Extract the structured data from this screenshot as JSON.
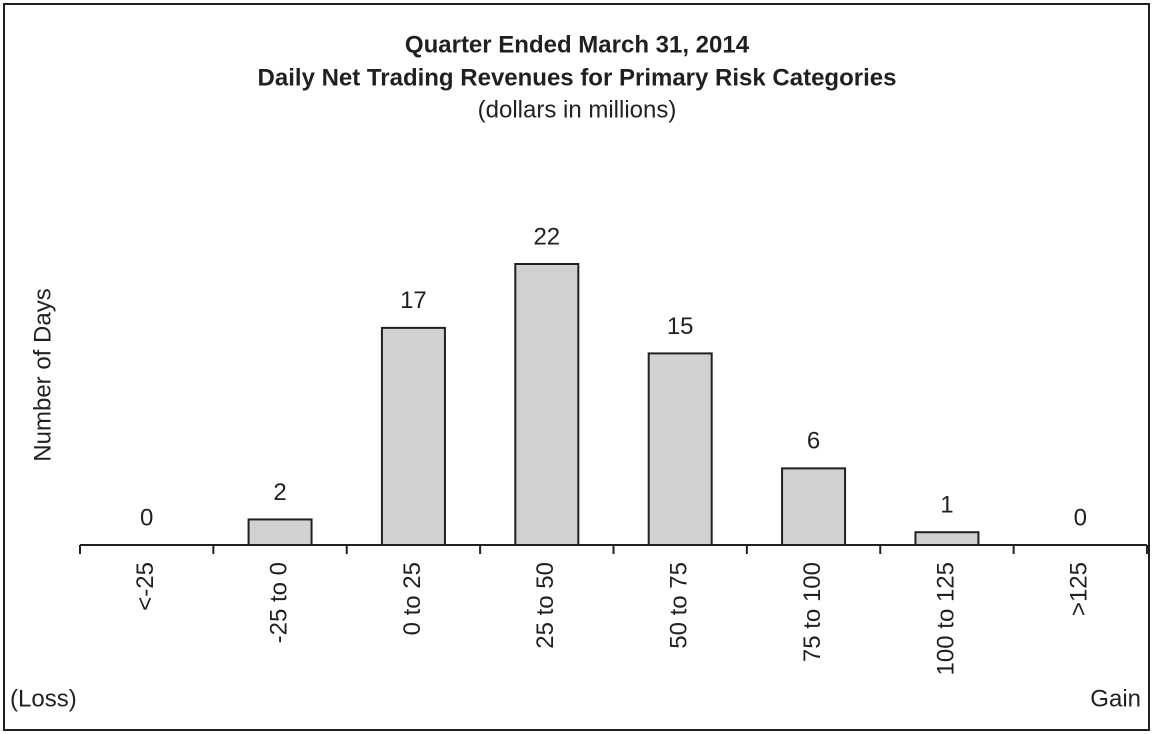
{
  "chart_data": {
    "type": "bar",
    "title": "Quarter Ended March 31, 2014",
    "subtitle": "Daily Net Trading Revenues for Primary Risk Categories",
    "units_note": "(dollars in millions)",
    "y_label": "Number of Days",
    "annotations": [
      "(Loss)",
      "Gain"
    ],
    "categories": [
      "<-25",
      "-25 to 0",
      "0 to 25",
      "25 to 50",
      "50 to 75",
      "75 to 100",
      "100 to 125",
      ">125"
    ],
    "values": [
      0,
      2,
      17,
      22,
      15,
      6,
      1,
      0
    ],
    "color": "#d0d1d3",
    "ylim": [
      0,
      22
    ]
  }
}
